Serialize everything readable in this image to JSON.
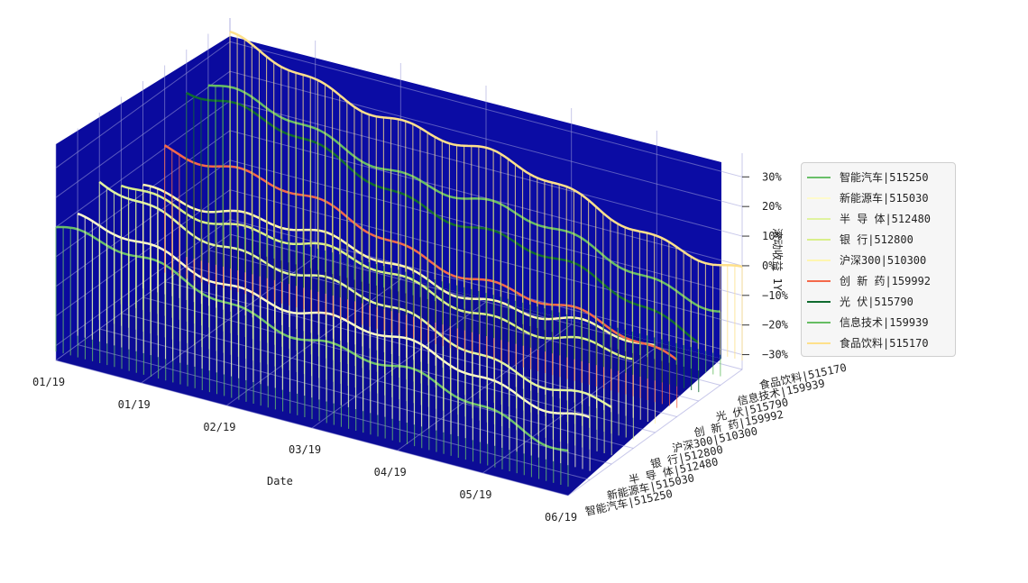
{
  "chart_data": {
    "type": "3d-line",
    "xlabel": "Date",
    "ylabel": "",
    "zlabel": "滚动收益 1Y",
    "x_ticks": [
      "01/19",
      "01/19",
      "02/19",
      "03/19",
      "04/19",
      "05/19",
      "06/19"
    ],
    "z_ticks": [
      "30%",
      "20%",
      "10%",
      "0%",
      "−10%",
      "−20%",
      "−30%"
    ],
    "z_range": [
      -35,
      38
    ],
    "legend_position": "right",
    "series": [
      {
        "name": "智能汽车|515250",
        "color": "#6abf69",
        "start": 10,
        "end": -18
      },
      {
        "name": "新能源车|515030",
        "color": "#fffbcc",
        "start": 6,
        "end": -14
      },
      {
        "name": "半 导 体|512480",
        "color": "#e0f3a0",
        "start": 13,
        "end": -16
      },
      {
        "name": "银   行|512800",
        "color": "#d9ef8b",
        "start": 9,
        "end": -6
      },
      {
        "name": "沪深300|510300",
        "color": "#fff6b0",
        "start": 4,
        "end": -8
      },
      {
        "name": "创 新 药|159992",
        "color": "#f4694a",
        "start": 12,
        "end": -16
      },
      {
        "name": "光   伏|515790",
        "color": "#0f6b2f",
        "start": 25,
        "end": -12
      },
      {
        "name": "信息技术|159939",
        "color": "#66bd63",
        "start": 20,
        "end": -8
      },
      {
        "name": "食品饮料|515170",
        "color": "#fee08b",
        "start": 30,
        "end": -2
      }
    ],
    "grid": true,
    "background": "#0a0aa6"
  }
}
